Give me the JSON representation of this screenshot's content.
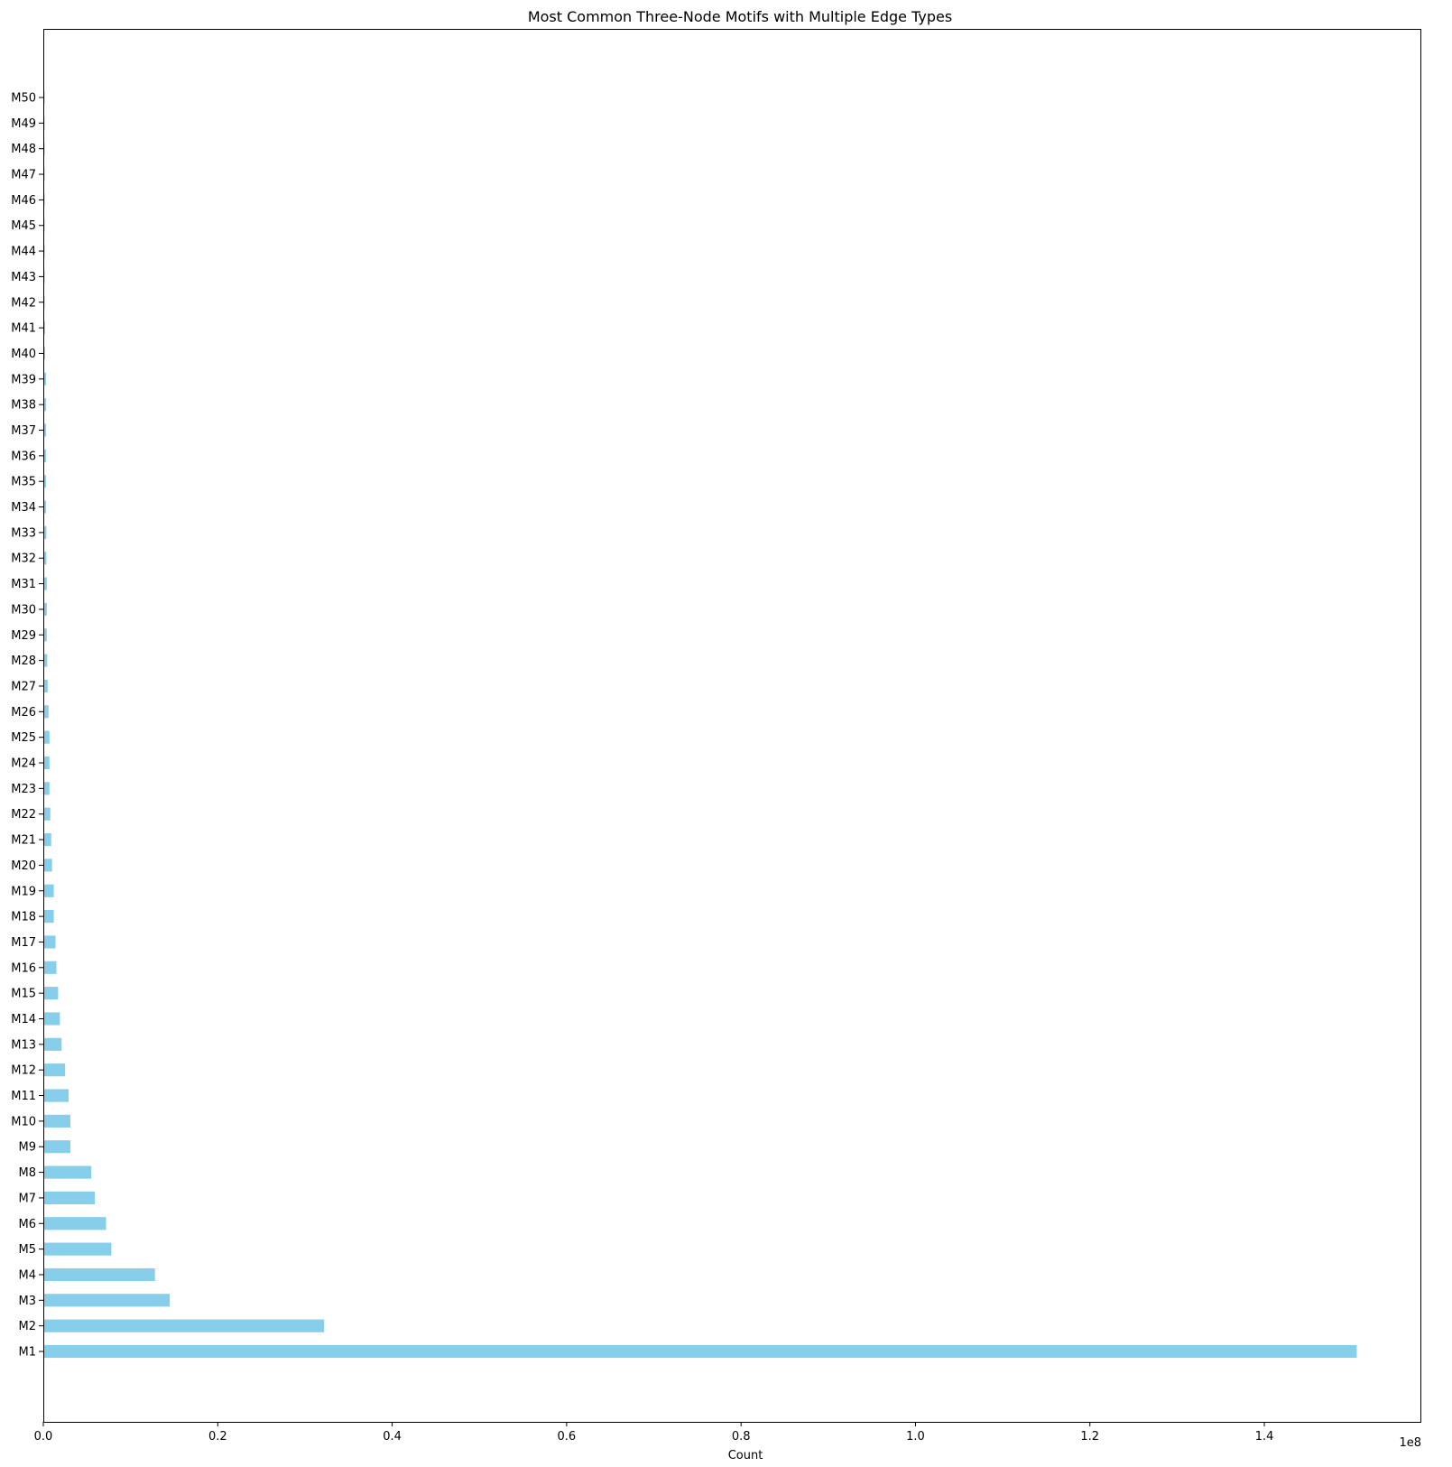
{
  "chart_data": {
    "type": "bar",
    "orientation": "horizontal",
    "title": "Most Common Three-Node Motifs with Multiple Edge Types",
    "xlabel": "Count",
    "ylabel": "",
    "x_offset_label": "1e8",
    "xlim": [
      0,
      158000000.0
    ],
    "x_ticks": [
      0,
      0.2,
      0.4,
      0.6,
      0.8,
      1.0,
      1.2,
      1.4
    ],
    "x_tick_labels": [
      "0.0",
      "0.2",
      "0.4",
      "0.6",
      "0.8",
      "1.0",
      "1.2",
      "1.4"
    ],
    "x_tick_multiplier": 100000000,
    "bar_color": "#87ceeb",
    "grid": false,
    "legend": "none",
    "categories": [
      "M1",
      "M2",
      "M3",
      "M4",
      "M5",
      "M6",
      "M7",
      "M8",
      "M9",
      "M10",
      "M11",
      "M12",
      "M13",
      "M14",
      "M15",
      "M16",
      "M17",
      "M18",
      "M19",
      "M20",
      "M21",
      "M22",
      "M23",
      "M24",
      "M25",
      "M26",
      "M27",
      "M28",
      "M29",
      "M30",
      "M31",
      "M32",
      "M33",
      "M34",
      "M35",
      "M36",
      "M37",
      "M38",
      "M39",
      "M40",
      "M41",
      "M42",
      "M43",
      "M44",
      "M45",
      "M46",
      "M47",
      "M48",
      "M49",
      "M50"
    ],
    "values": [
      150600000,
      32200000,
      14500000,
      12800000,
      7800000,
      7200000,
      5900000,
      5500000,
      3100000,
      3100000,
      2900000,
      2500000,
      2100000,
      1900000,
      1700000,
      1500000,
      1400000,
      1200000,
      1200000,
      1000000,
      900000,
      800000,
      700000,
      700000,
      700000,
      600000,
      500000,
      450000,
      400000,
      400000,
      400000,
      350000,
      350000,
      300000,
      300000,
      300000,
      300000,
      300000,
      300000,
      200000,
      200000,
      150000,
      150000,
      150000,
      100000,
      100000,
      100000,
      100000,
      100000,
      100000
    ]
  }
}
